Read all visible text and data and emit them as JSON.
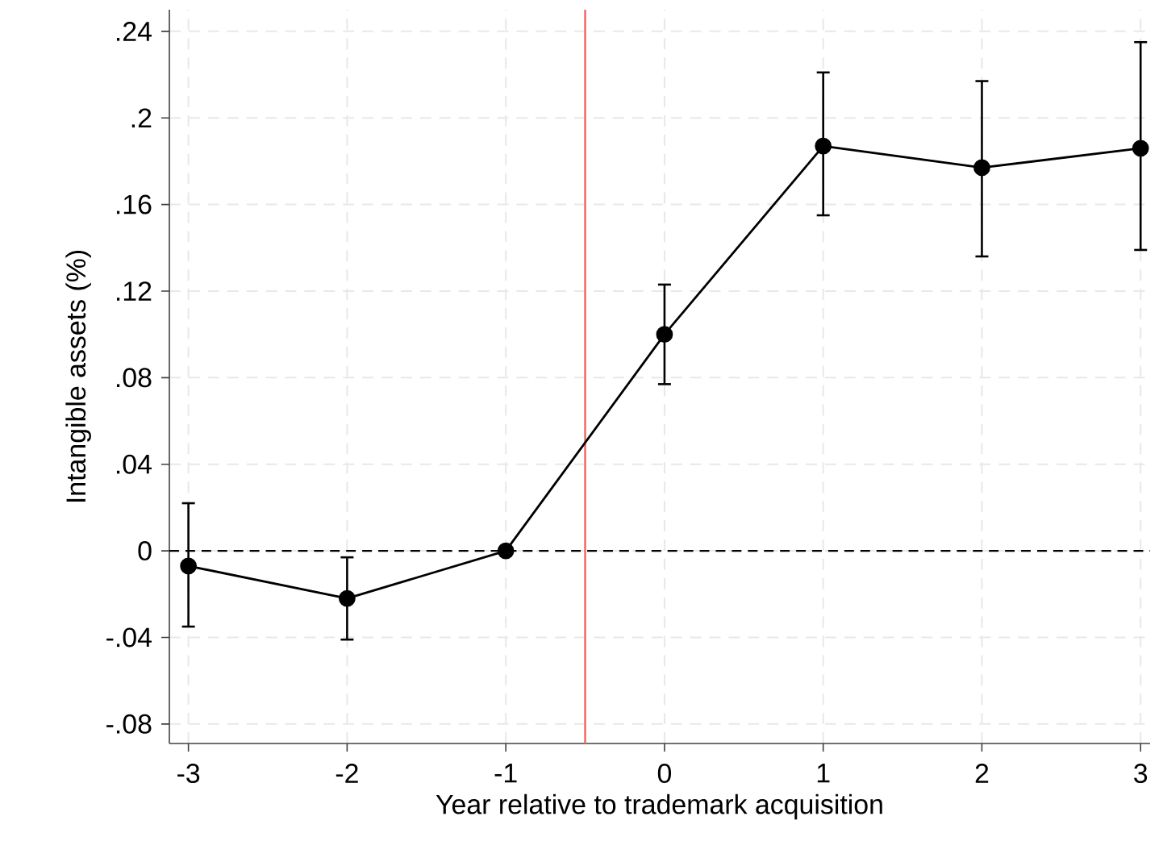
{
  "chart_data": {
    "type": "line",
    "xlabel": "Year relative to trademark acquisition",
    "ylabel": "Intangible assets (%)",
    "x": [
      -3,
      -2,
      -1,
      0,
      1,
      2,
      3
    ],
    "values": [
      -0.007,
      -0.022,
      0,
      0.1,
      0.187,
      0.177,
      0.186
    ],
    "errors": [
      [
        -0.035,
        0.022
      ],
      [
        -0.041,
        -0.003
      ],
      null,
      [
        0.077,
        0.123
      ],
      [
        0.155,
        0.221
      ],
      [
        0.136,
        0.217
      ],
      [
        0.139,
        0.235
      ]
    ],
    "color": "#000000",
    "marker": "circle",
    "line_style": "solid",
    "grid": true,
    "xlim": [
      -3.12,
      3.06
    ],
    "ylim": [
      -0.089,
      0.25
    ],
    "xticks": [
      -3,
      -2,
      -1,
      0,
      1,
      2,
      3
    ],
    "yticks": [
      {
        "value": -0.08,
        "label": "-.08"
      },
      {
        "value": -0.04,
        "label": "-.04"
      },
      {
        "value": 0,
        "label": "0"
      },
      {
        "value": 0.04,
        "label": ".04"
      },
      {
        "value": 0.08,
        "label": ".08"
      },
      {
        "value": 0.12,
        "label": ".12"
      },
      {
        "value": 0.16,
        "label": ".16"
      },
      {
        "value": 0.2,
        "label": ".2"
      },
      {
        "value": 0.24,
        "label": ".24"
      }
    ],
    "ref_lines": [
      {
        "axis": "y",
        "value": 0,
        "color": "#000000",
        "line_style": "dashed"
      },
      {
        "axis": "x",
        "value": -0.5,
        "color": "#f0645a",
        "line_style": "solid"
      }
    ]
  }
}
